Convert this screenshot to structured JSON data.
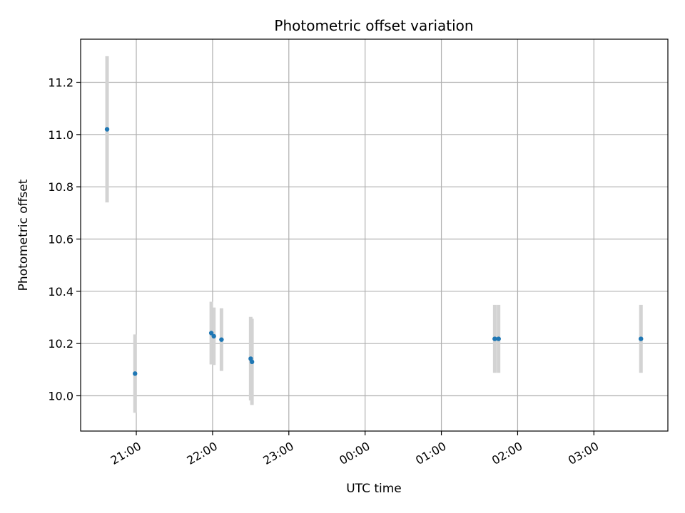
{
  "chart_data": {
    "type": "scatter",
    "title": "Photometric offset variation",
    "xlabel": "UTC time",
    "ylabel": "Photometric offset",
    "x_tick_labels": [
      "21:00",
      "22:00",
      "23:00",
      "00:00",
      "01:00",
      "02:00",
      "03:00"
    ],
    "x_ticks_hours": [
      21,
      22,
      23,
      24,
      25,
      26,
      27
    ],
    "xlim_hours": [
      20.27,
      27.97
    ],
    "y_tick_labels": [
      "10.0",
      "10.2",
      "10.4",
      "10.6",
      "10.8",
      "11.0",
      "11.2"
    ],
    "y_ticks": [
      10.0,
      10.2,
      10.4,
      10.6,
      10.8,
      11.0,
      11.2
    ],
    "ylim": [
      9.865,
      11.365
    ],
    "grid": true,
    "series": [
      {
        "marker_color": "#1f77b4",
        "errorbar_color": "#d3d3d3",
        "points": [
          {
            "t": "20:37",
            "y": 11.02,
            "err": 0.28
          },
          {
            "t": "20:59",
            "y": 10.085,
            "err": 0.15
          },
          {
            "t": "21:59",
            "y": 10.24,
            "err": 0.12
          },
          {
            "t": "22:01",
            "y": 10.228,
            "err": 0.11
          },
          {
            "t": "22:07",
            "y": 10.215,
            "err": 0.12
          },
          {
            "t": "22:30",
            "y": 10.142,
            "err": 0.16
          },
          {
            "t": "22:31",
            "y": 10.13,
            "err": 0.165
          },
          {
            "t": "01:42",
            "y": 10.218,
            "err": 0.13
          },
          {
            "t": "01:45",
            "y": 10.218,
            "err": 0.13
          },
          {
            "t": "03:37",
            "y": 10.218,
            "err": 0.13
          }
        ]
      }
    ]
  }
}
